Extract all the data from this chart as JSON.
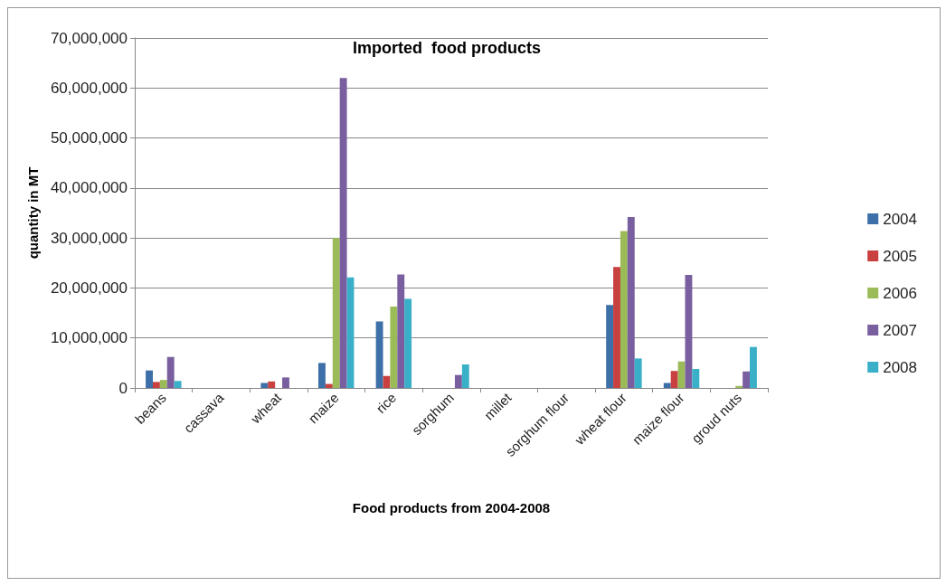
{
  "chart_data": {
    "type": "bar",
    "title": "Imported  food products",
    "xlabel": "Food products from 2004-2008",
    "ylabel": "quantity in MT",
    "categories": [
      "beans",
      "cassava",
      "wheat",
      "maize",
      "rice",
      "sorghum",
      "millet",
      "sorghum flour",
      "wheat flour",
      "maize flour",
      "groud nuts"
    ],
    "series": [
      {
        "name": "2004",
        "color": "#3d6fa8",
        "values": [
          3500000,
          0,
          1000000,
          5000000,
          13300000,
          0,
          0,
          0,
          16600000,
          1000000,
          0
        ]
      },
      {
        "name": "2005",
        "color": "#c8403f",
        "values": [
          1200000,
          0,
          1300000,
          800000,
          2400000,
          0,
          0,
          0,
          24200000,
          3400000,
          0
        ]
      },
      {
        "name": "2006",
        "color": "#9bbb59",
        "values": [
          1600000,
          0,
          0,
          30000000,
          16300000,
          0,
          0,
          0,
          31400000,
          5300000,
          400000
        ]
      },
      {
        "name": "2007",
        "color": "#7a5fa0",
        "values": [
          6200000,
          0,
          2100000,
          62000000,
          22700000,
          2600000,
          0,
          0,
          34200000,
          22600000,
          3300000
        ]
      },
      {
        "name": "2008",
        "color": "#3ab0c8",
        "values": [
          1400000,
          0,
          0,
          22100000,
          17800000,
          4700000,
          0,
          0,
          5900000,
          3800000,
          8200000
        ]
      }
    ],
    "ylim": [
      0,
      70000000
    ],
    "yticks": [
      0,
      {
        "value": 10000000,
        "label": "10,000,000"
      },
      {
        "value": 20000000,
        "label": "20,000,000"
      },
      {
        "value": 30000000,
        "label": "30,000,000"
      },
      {
        "value": 40000000,
        "label": "40,000,000"
      },
      {
        "value": 50000000,
        "label": "50,000,000"
      },
      {
        "value": 60000000,
        "label": "60,000,000"
      },
      {
        "value": 70000000,
        "label": "70,000,000"
      }
    ],
    "grid": "y",
    "legend": "right"
  }
}
